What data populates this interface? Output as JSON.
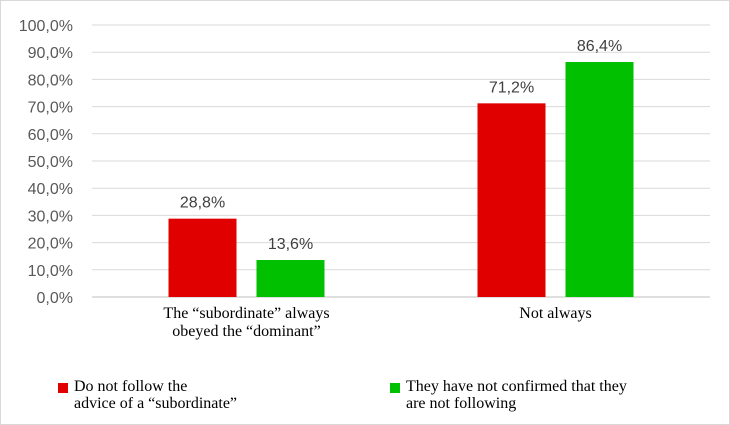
{
  "chart_data": {
    "type": "bar",
    "categories": [
      [
        "The “subordinate” always",
        "obeyed the “dominant”"
      ],
      [
        "Not always"
      ]
    ],
    "series": [
      {
        "name": [
          "Do not follow the",
          "advice of a “subordinate”"
        ],
        "color": "#e00000",
        "values": [
          28.8,
          71.2
        ],
        "labels": [
          "28,8%",
          "71,2%"
        ]
      },
      {
        "name": [
          "They have not confirmed that they",
          "are not following"
        ],
        "color": "#00c000",
        "values": [
          13.6,
          86.4
        ],
        "labels": [
          "13,6%",
          "86,4%"
        ]
      }
    ],
    "ylim": [
      0,
      100
    ],
    "yticks": [
      "0,0%",
      "10,0%",
      "20,0%",
      "30,0%",
      "40,0%",
      "50,0%",
      "60,0%",
      "70,0%",
      "80,0%",
      "90,0%",
      "100,0%"
    ],
    "grid": true,
    "legend_position": "bottom"
  }
}
